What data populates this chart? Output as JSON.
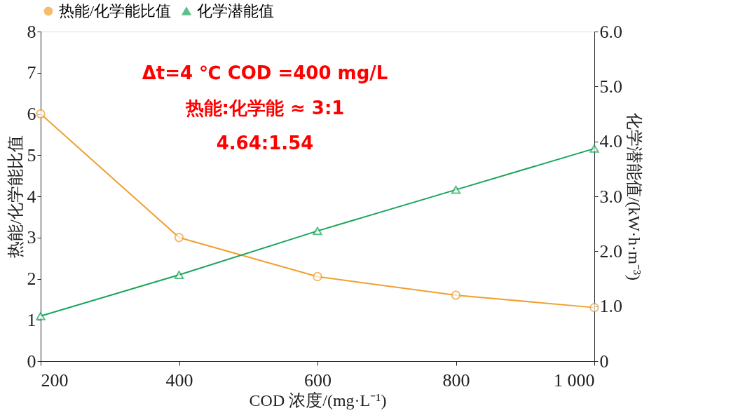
{
  "chart_data": {
    "type": "line",
    "xlabel": "COD 浓度/(mg·L⁻¹)",
    "ylabel": "热能/化学能比值",
    "y2label": "化学潜能值/(kW·h·m⁻³)",
    "x": [
      200,
      400,
      600,
      800,
      1000
    ],
    "series": [
      {
        "name": "热能/化学能比值",
        "color": "#f0a030",
        "marker": "circle",
        "values": [
          6.0,
          3.0,
          2.05,
          1.6,
          1.3
        ]
      },
      {
        "name": "化学潜能值",
        "color": "#1aa55a",
        "marker": "triangle",
        "axis": "y2",
        "values": [
          0.82,
          1.57,
          2.37,
          3.12,
          3.87
        ]
      }
    ],
    "xlim": [
      200,
      1000
    ],
    "xticks": [
      200,
      400,
      600,
      800,
      {
        "value": 1000,
        "label": "1 000"
      }
    ],
    "ylim": [
      0,
      8
    ],
    "yticks": [
      0,
      1,
      2,
      3,
      4,
      5,
      6,
      7,
      8
    ],
    "y2lim": [
      0,
      6
    ],
    "y2ticks": [
      {
        "value": 0,
        "label": "0"
      },
      {
        "value": 1,
        "label": "1.0"
      },
      {
        "value": 2,
        "label": "2.0"
      },
      {
        "value": 3,
        "label": "3.0"
      },
      {
        "value": 4,
        "label": "4.0"
      },
      {
        "value": 5,
        "label": "5.0"
      },
      {
        "value": 6,
        "label": "6.0"
      }
    ],
    "annotations": [
      "Δt=4 ℃ COD =400 mg/L",
      "热能:化学能 ≈ 3:1",
      "4.64:1.54"
    ],
    "legend": "top",
    "grid": false,
    "line_style": "solid"
  }
}
